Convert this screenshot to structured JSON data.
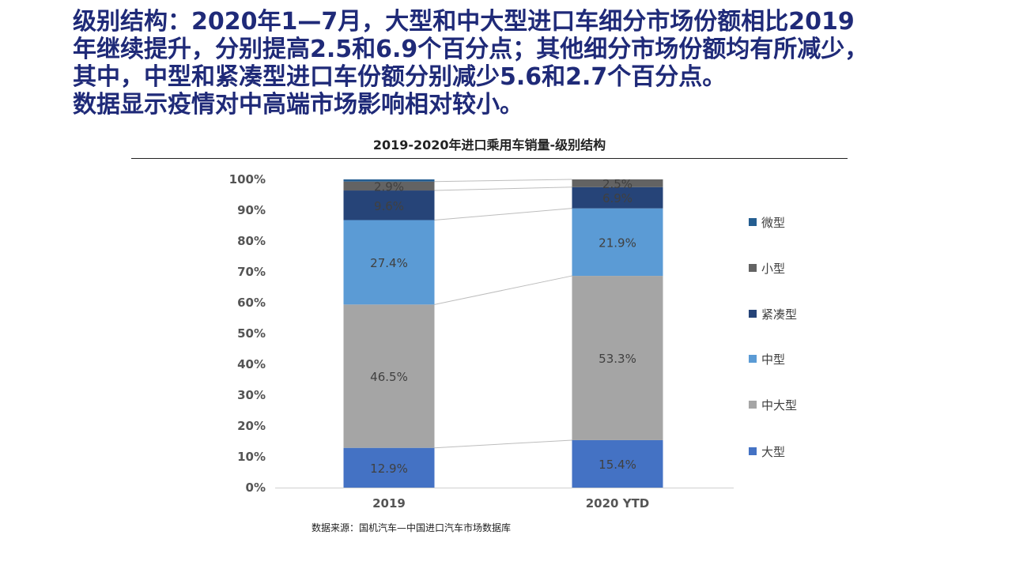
{
  "headline": {
    "lines": [
      "级别结构：2020年1—7月，大型和中大型进口车细分市场份额相比2019",
      "年继续提升，分别提高2.5和6.9个百分点；其他细分市场份额均有所减少，",
      "其中，中型和紧凑型进口车份额分别减少5.6和2.7个百分点。",
      "数据显示疫情对中高端市场影响相对较小。"
    ]
  },
  "source_note": "数据来源：国机汽车—中国进口汽车市场数据库",
  "chart_data": {
    "type": "bar",
    "stacked": true,
    "percent_stacked": true,
    "title": "2019-2020年进口乘用车销量-级别结构",
    "categories": [
      "2019",
      "2020 YTD"
    ],
    "ylim": [
      0,
      100
    ],
    "y_ticks": [
      "0%",
      "10%",
      "20%",
      "30%",
      "40%",
      "50%",
      "60%",
      "70%",
      "80%",
      "90%",
      "100%"
    ],
    "grid": false,
    "legend_position": "right",
    "series": [
      {
        "name": "大型",
        "color": "#4472c4",
        "values": [
          12.9,
          15.4
        ],
        "labels": [
          "12.9%",
          "15.4%"
        ]
      },
      {
        "name": "中大型",
        "color": "#a5a5a5",
        "values": [
          46.5,
          53.3
        ],
        "labels": [
          "46.5%",
          "53.3%"
        ]
      },
      {
        "name": "中型",
        "color": "#5b9bd5",
        "values": [
          27.4,
          21.9
        ],
        "labels": [
          "27.4%",
          "21.9%"
        ]
      },
      {
        "name": "紧凑型",
        "color": "#264478",
        "values": [
          9.6,
          6.9
        ],
        "labels": [
          "9.6%",
          "6.9%"
        ]
      },
      {
        "name": "小型",
        "color": "#636363",
        "values": [
          2.9,
          2.5
        ],
        "labels": [
          "2.9%",
          "2.5%"
        ]
      },
      {
        "name": "微型",
        "color": "#255e91",
        "values": [
          0.7,
          0.0
        ],
        "labels": [
          "",
          ""
        ]
      }
    ],
    "legend_order": [
      "微型",
      "小型",
      "紧凑型",
      "中型",
      "中大型",
      "大型"
    ]
  }
}
